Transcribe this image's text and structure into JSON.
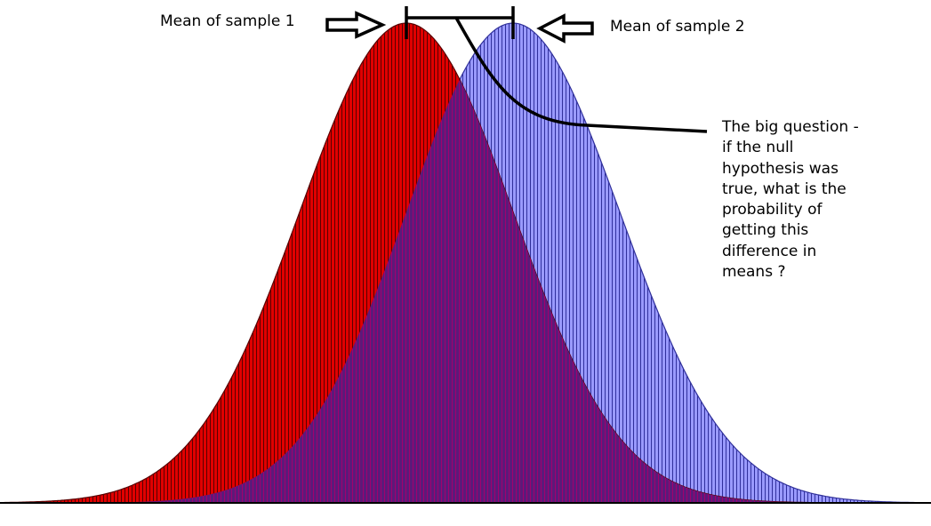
{
  "labels": {
    "sample_1": "Mean of sample 1",
    "sample_2": "Mean of sample 2"
  },
  "annotation": {
    "lines": [
      "The big question -",
      "if the null",
      "hypothesis was",
      "true, what is the",
      "probability of",
      "getting this",
      "difference in",
      "means ?"
    ]
  },
  "distributions": [
    {
      "name": "sample-1",
      "mean": 0,
      "sd": 1,
      "fill": "#e00000",
      "stripe": "#5a0000"
    },
    {
      "name": "sample-2",
      "mean": 1,
      "sd": 1,
      "fill": "#9a9aff",
      "stripe": "#30309a"
    }
  ],
  "colors": {
    "overlap_fill": "#5b1a7a",
    "overlap_stripe": "#a2006e",
    "line": "#000000"
  }
}
